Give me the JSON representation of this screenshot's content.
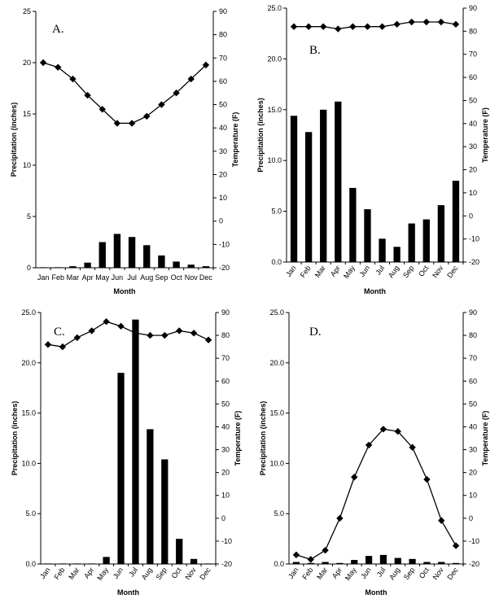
{
  "chart_data": [
    {
      "type": "bar",
      "panel_label": "A.",
      "categories": [
        "Jan",
        "Feb",
        "Mar",
        "Apr",
        "May",
        "Jun",
        "Jul",
        "Aug",
        "Sep",
        "Oct",
        "Nov",
        "Dec"
      ],
      "series": [
        {
          "kind": "bar",
          "axis": "left",
          "values": [
            0.05,
            0.05,
            0.15,
            0.5,
            2.5,
            3.3,
            3.0,
            2.2,
            1.2,
            0.6,
            0.3,
            0.15
          ]
        },
        {
          "kind": "line",
          "axis": "right",
          "marker": "diamond",
          "values": [
            68,
            66,
            61,
            54,
            48,
            42,
            42,
            45,
            50,
            55,
            61,
            67
          ]
        }
      ],
      "xlabel": "Month",
      "ylabel": "Precipitation (inches)",
      "y2label": "Temperature (F)",
      "ylim": [
        0,
        25
      ],
      "y2lim": [
        -20,
        90
      ],
      "yticks": [
        "0",
        "5",
        "10",
        "15",
        "20",
        "25"
      ],
      "y2ticks": [
        "-20",
        "-10",
        "0",
        "10",
        "20",
        "30",
        "40",
        "50",
        "60",
        "70",
        "80",
        "90"
      ],
      "xtick_rotation": 0
    },
    {
      "type": "bar",
      "panel_label": "B.",
      "categories": [
        "Jan",
        "Feb",
        "Mar",
        "Apr",
        "May",
        "Jun",
        "Jul",
        "Aug",
        "Sep",
        "Oct",
        "Nov",
        "Dec"
      ],
      "series": [
        {
          "kind": "bar",
          "axis": "left",
          "values": [
            14.4,
            12.8,
            15.0,
            15.8,
            7.3,
            5.2,
            2.3,
            1.5,
            3.8,
            4.2,
            5.6,
            8.0
          ]
        },
        {
          "kind": "line",
          "axis": "right",
          "marker": "diamond",
          "values": [
            82,
            82,
            82,
            81,
            82,
            82,
            82,
            83,
            84,
            84,
            84,
            83
          ]
        }
      ],
      "xlabel": "Month",
      "ylabel": "Precipitation (inches)",
      "y2label": "Temperature (F)",
      "ylim": [
        0,
        25
      ],
      "y2lim": [
        -20,
        90
      ],
      "yticks": [
        "0.0",
        "5.0",
        "10.0",
        "15.0",
        "20.0",
        "25.0"
      ],
      "y2ticks": [
        "-20",
        "-10",
        "0",
        "10",
        "20",
        "30",
        "40",
        "50",
        "60",
        "70",
        "80",
        "90"
      ],
      "xtick_rotation": -55
    },
    {
      "type": "bar",
      "panel_label": "C.",
      "categories": [
        "Jan",
        "Feb",
        "Mar",
        "Apr",
        "May",
        "Jun",
        "Jul",
        "Aug",
        "Sep",
        "Oct",
        "Nov",
        "Dec"
      ],
      "series": [
        {
          "kind": "bar",
          "axis": "left",
          "values": [
            0.05,
            0.05,
            0.05,
            0.05,
            0.7,
            19.0,
            24.3,
            13.4,
            10.4,
            2.5,
            0.5,
            0.05
          ]
        },
        {
          "kind": "line",
          "axis": "right",
          "marker": "diamond",
          "values": [
            76,
            75,
            79,
            82,
            86,
            84,
            81,
            80,
            80,
            82,
            81,
            78
          ]
        }
      ],
      "xlabel": "Month",
      "ylabel": "Precipitation (inches)",
      "y2label": "Temperature (F)",
      "ylim": [
        0,
        25
      ],
      "y2lim": [
        -20,
        90
      ],
      "yticks": [
        "0.0",
        "5.0",
        "10.0",
        "15.0",
        "20.0",
        "25.0"
      ],
      "y2ticks": [
        "-20",
        "-10",
        "0",
        "10",
        "20",
        "30",
        "40",
        "50",
        "60",
        "70",
        "80",
        "90"
      ],
      "xtick_rotation": -55
    },
    {
      "type": "bar",
      "panel_label": "D.",
      "categories": [
        "Jan",
        "Feb",
        "Mar",
        "Apr",
        "May",
        "Jun",
        "Jul",
        "Aug",
        "Sep",
        "Oct",
        "Nov",
        "Dec"
      ],
      "series": [
        {
          "kind": "bar",
          "axis": "left",
          "values": [
            0.2,
            0.1,
            0.2,
            0.1,
            0.4,
            0.8,
            0.9,
            0.6,
            0.5,
            0.2,
            0.2,
            0.1
          ]
        },
        {
          "kind": "line",
          "axis": "right",
          "marker": "diamond",
          "values": [
            -16,
            -18,
            -14,
            0,
            18,
            32,
            39,
            38,
            31,
            17,
            -1,
            -12
          ]
        }
      ],
      "xlabel": "Month",
      "ylabel": "Precipitation (inches)",
      "y2label": "Temperature (F)",
      "ylim": [
        0,
        25
      ],
      "y2lim": [
        -20,
        90
      ],
      "yticks": [
        "0.0",
        "5.0",
        "10.0",
        "15.0",
        "20.0",
        "25.0"
      ],
      "y2ticks": [
        "-20",
        "-10",
        "0",
        "10",
        "20",
        "30",
        "40",
        "50",
        "60",
        "70",
        "80",
        "90"
      ],
      "xtick_rotation": -55
    }
  ]
}
